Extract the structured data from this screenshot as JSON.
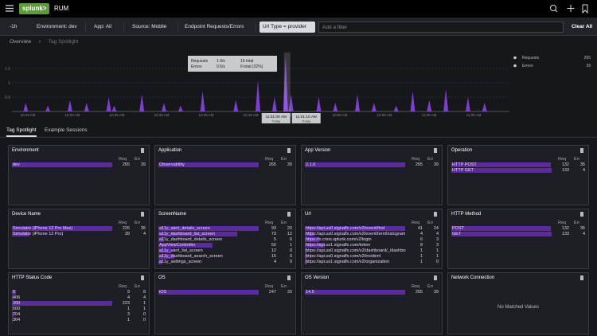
{
  "header": {
    "logo": "splunk>",
    "product": "RUM"
  },
  "filters": {
    "time": "-1h",
    "items": [
      "Environment: dev",
      "App: All",
      "Source: Mobile",
      "Endpoint Requests/Errors"
    ],
    "chip": "Url Type = provider",
    "placeholder": "Add a filter",
    "clear": "Clear All"
  },
  "breadcrumb": [
    "Overview",
    "Tag Spotlight"
  ],
  "timeline": {
    "values": [
      0,
      0,
      0.3,
      0,
      0,
      0,
      0.2,
      0,
      0,
      0,
      0.4,
      0,
      0,
      0.3,
      0,
      0,
      0,
      0.5,
      0.2,
      0,
      0,
      0,
      0,
      0.6,
      0,
      0,
      0,
      0.3,
      0,
      0,
      0.2,
      0,
      0,
      0,
      0.7,
      0,
      0,
      0,
      0,
      0,
      0.4,
      0,
      0,
      0,
      1.1,
      0,
      0,
      0.5,
      0,
      1.9,
      0.6,
      0,
      0,
      0,
      0,
      0.5,
      0,
      0,
      0.3,
      0,
      0,
      0,
      0.6,
      0,
      0,
      0.3,
      0,
      0,
      0,
      0.2,
      0,
      0,
      0.7,
      0,
      0,
      0.4,
      0,
      0,
      0.8,
      0,
      0,
      0,
      0.5,
      0,
      0,
      0.3,
      0,
      0,
      0,
      0
    ],
    "ylim": [
      0,
      2
    ],
    "yticks": [
      0.5,
      1,
      1.5
    ],
    "xlabels": [
      "10:15 AM",
      "10:20 AM",
      "10:25 AM",
      "10:30 AM",
      "10:35 AM",
      "10:40 AM",
      "10:45 AM",
      "10:50 AM",
      "10:55 AM",
      "11:00 AM",
      "11:05 AM"
    ],
    "tooltip": {
      "rows": [
        {
          "name": "Requests",
          "rate": "1.9/s",
          "total": "19 total"
        },
        {
          "name": "Errors",
          "rate": "0.6/s",
          "total": "6 total (32%)"
        }
      ]
    },
    "markers": [
      {
        "time": "11:01:00 AM",
        "day": "Today"
      },
      {
        "time": "11:01:10 AM",
        "day": "Today"
      }
    ],
    "legend": [
      {
        "name": "Requests",
        "value": 265
      },
      {
        "name": "Errors",
        "value": 39
      }
    ]
  },
  "tabs": [
    "Tag Spotlight",
    "Example Sessions"
  ],
  "columns": [
    "Req",
    "Err"
  ],
  "panels": [
    {
      "title": "Environment",
      "rows": [
        {
          "label": "dev",
          "req": 265,
          "err": 39
        }
      ]
    },
    {
      "title": "Application",
      "rows": [
        {
          "label": "Observability",
          "req": 265,
          "err": 39
        }
      ]
    },
    {
      "title": "App Version",
      "rows": [
        {
          "label": "2.1.0",
          "req": 265,
          "err": 39
        }
      ]
    },
    {
      "title": "Operation",
      "rows": [
        {
          "label": "HTTP POST",
          "req": 132,
          "err": 35
        },
        {
          "label": "HTTP GET",
          "req": 133,
          "err": 4
        }
      ]
    },
    {
      "title": "Device Name",
      "rows": [
        {
          "label": "Simulator (iPhone 12 Pro Max)",
          "req": 226,
          "err": 35
        },
        {
          "label": "Simulator (iPhone 12 Pro)",
          "req": 39,
          "err": 4
        }
      ]
    },
    {
      "title": "ScreenName",
      "rows": [
        {
          "label": "a11y_alert_details_screen",
          "req": 93,
          "err": 20
        },
        {
          "label": "a11y_dashboard_list_screen",
          "req": 73,
          "err": 12
        },
        {
          "label": "a11y_dashboard_details_screen",
          "req": 5,
          "err": 6
        },
        {
          "label": "AppViewController",
          "req": 50,
          "err": 1
        },
        {
          "label": "a11y_alert_list_screen",
          "req": 12,
          "err": 0
        },
        {
          "label": "a11y_dashboard_search_screen",
          "req": 15,
          "err": 0
        },
        {
          "label": "a11y_settings_screen",
          "req": 4,
          "err": 0
        }
      ]
    },
    {
      "title": "Url",
      "rows": [
        {
          "label": "https://api.us0.signalfx.com/v2/event/find",
          "req": 41,
          "err": 24
        },
        {
          "label": "https://api.us0.signalfx.com/v2/event/termhistogram",
          "req": 4,
          "err": 4
        },
        {
          "label": "https://o.crios.splunk.com/v2/login",
          "req": 6,
          "err": 3
        },
        {
          "label": "https://api.us1.signalfx.com/token",
          "req": 8,
          "err": 3
        },
        {
          "label": "https://api.us0.signalfx.com/v2/dashboard/_/dashboards",
          "req": 1,
          "err": 1
        },
        {
          "label": "https://api.us0.signalfx.com/v2/incident",
          "req": 1,
          "err": 1
        },
        {
          "label": "https://api.us1.signalfx.com/v2/organization",
          "req": 1,
          "err": 0
        }
      ]
    },
    {
      "title": "HTTP Method",
      "rows": [
        {
          "label": "POST",
          "req": 132,
          "err": 35
        },
        {
          "label": "GET",
          "req": 133,
          "err": 4
        }
      ]
    },
    {
      "title": "HTTP Status Code",
      "rows": [
        {
          "label": "0",
          "req": 9,
          "err": 8
        },
        {
          "label": "406",
          "req": 4,
          "err": 4
        },
        {
          "label": "200",
          "req": 223,
          "err": 1
        },
        {
          "label": "500",
          "req": 1,
          "err": 1
        },
        {
          "label": "204",
          "req": 3,
          "err": 0
        },
        {
          "label": "304",
          "req": 1,
          "err": 0
        }
      ]
    },
    {
      "title": "OS",
      "rows": [
        {
          "label": "iOS",
          "req": 247,
          "err": 33
        }
      ]
    },
    {
      "title": "OS Version",
      "rows": [
        {
          "label": "14.5",
          "req": 265,
          "err": 39
        }
      ]
    },
    {
      "title": "Network Connection",
      "rows": [],
      "empty": "No Matched Values"
    }
  ]
}
